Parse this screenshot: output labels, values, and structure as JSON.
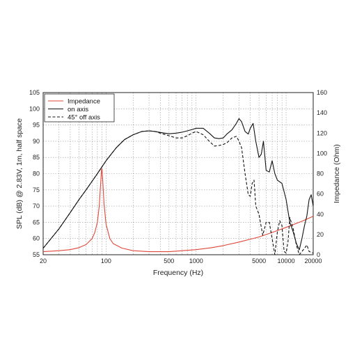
{
  "chart_data": {
    "type": "line",
    "title": "",
    "xlabel": "Frequency (Hz)",
    "ylabel": "SPL (dB) @ 2.83V, 1m, half space",
    "y2label": "Impedance (Ohm)",
    "x_scale": "log",
    "xlim": [
      20,
      20000
    ],
    "ylim": [
      55,
      105
    ],
    "y2lim": [
      0,
      160
    ],
    "x_tick_labels": [
      "20",
      "100",
      "500",
      "1000",
      "5000",
      "10000",
      "20000"
    ],
    "y_tick_labels": [
      "55",
      "60",
      "65",
      "70",
      "75",
      "80",
      "85",
      "90",
      "95",
      "100",
      "105"
    ],
    "y2_tick_labels": [
      "0",
      "20",
      "40",
      "60",
      "80",
      "100",
      "120",
      "140",
      "160"
    ],
    "grid": true,
    "legend_position": "top-left",
    "legend": [
      "Impedance",
      "on axis",
      "45° off axis"
    ],
    "series": [
      {
        "name": "Impedance",
        "axis": "right",
        "color": "#e0473a",
        "style": "solid",
        "x": [
          20,
          30,
          40,
          50,
          60,
          70,
          75,
          80,
          84,
          87,
          89,
          90,
          92,
          95,
          100,
          110,
          120,
          150,
          200,
          300,
          400,
          500,
          700,
          1000,
          1500,
          2000,
          3000,
          5000,
          7000,
          10000,
          15000,
          20000
        ],
        "values": [
          3,
          4,
          5,
          7,
          10,
          16,
          22,
          32,
          48,
          70,
          84,
          85,
          72,
          50,
          30,
          16,
          11,
          6.5,
          4,
          3,
          3,
          3,
          4,
          5,
          7,
          9,
          12.5,
          17.5,
          22,
          27,
          33,
          38
        ]
      },
      {
        "name": "on axis",
        "axis": "left",
        "color": "#111111",
        "style": "solid",
        "x": [
          20,
          30,
          40,
          50,
          60,
          80,
          100,
          130,
          160,
          200,
          250,
          300,
          350,
          400,
          500,
          600,
          700,
          800,
          900,
          1000,
          1200,
          1400,
          1600,
          1800,
          2000,
          2200,
          2500,
          2800,
          3000,
          3200,
          3500,
          3800,
          4000,
          4300,
          4600,
          5000,
          5300,
          5600,
          6000,
          6500,
          7000,
          7500,
          8000,
          9000,
          10000,
          11000,
          12000,
          13000,
          14000,
          15000,
          16000,
          17000,
          18000,
          19000,
          20000
        ],
        "values": [
          57,
          63,
          68,
          72,
          75,
          80,
          84,
          88,
          90.5,
          92,
          93,
          93.2,
          93,
          92.7,
          92.3,
          92.5,
          92.8,
          93.2,
          93.6,
          94,
          94,
          92.5,
          91,
          90.8,
          91,
          92.2,
          93.5,
          95.5,
          97,
          96,
          93,
          92.2,
          94,
          95.5,
          90,
          85,
          86,
          90,
          81,
          80.5,
          84,
          80,
          78,
          77,
          72,
          65,
          62,
          58.5,
          56.5,
          60,
          64,
          67,
          72,
          73.5,
          70
        ]
      },
      {
        "name": "45° off axis",
        "axis": "left",
        "color": "#111111",
        "style": "dashed",
        "x": [
          20,
          30,
          40,
          50,
          60,
          80,
          100,
          130,
          160,
          200,
          250,
          300,
          350,
          400,
          500,
          600,
          700,
          800,
          900,
          1000,
          1200,
          1400,
          1600,
          1800,
          2000,
          2200,
          2500,
          2800,
          3000,
          3200,
          3500,
          3800,
          4000,
          4200,
          4400,
          4600,
          5000,
          5500,
          6000,
          6500,
          7000,
          7500,
          8000,
          8500,
          9000,
          9500,
          10000,
          10500,
          11000,
          12000,
          13000,
          14000,
          15000,
          16000,
          17000,
          18000,
          20000
        ],
        "values": [
          57,
          63,
          68,
          72,
          75,
          80,
          84,
          88,
          90.5,
          92,
          93,
          93.2,
          93,
          92.5,
          91.7,
          91,
          91,
          91.7,
          92.5,
          93,
          92,
          90,
          88.5,
          88.7,
          89,
          89.5,
          91,
          91.5,
          90,
          88,
          80,
          73.5,
          73,
          77,
          78,
          70,
          67.5,
          61,
          65,
          65,
          60,
          55,
          62,
          65.5,
          64,
          56,
          55.5,
          59,
          66.5,
          63,
          58,
          55,
          56,
          57,
          58,
          56,
          55.5
        ]
      }
    ]
  }
}
